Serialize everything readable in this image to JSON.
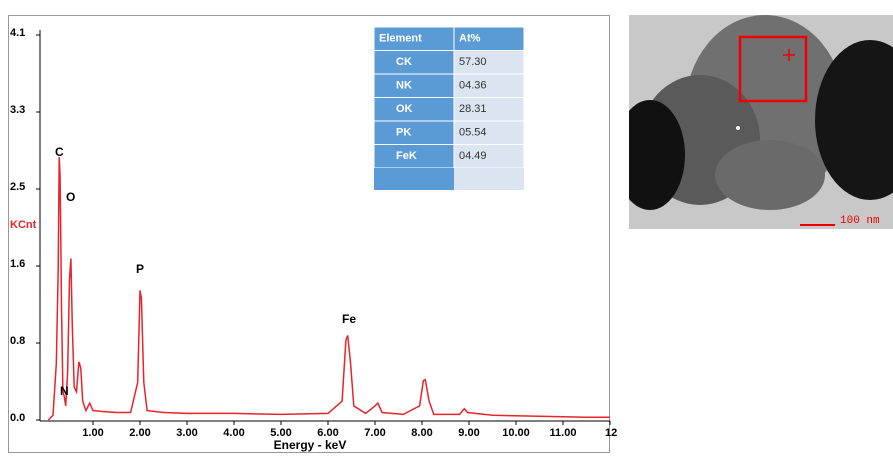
{
  "chart_data": {
    "type": "line",
    "x_label": "Energy - keV",
    "y_label": "KCnt",
    "x": [
      0.05,
      0.15,
      0.22,
      0.26,
      0.28,
      0.3,
      0.33,
      0.36,
      0.39,
      0.42,
      0.46,
      0.5,
      0.53,
      0.56,
      0.6,
      0.65,
      0.7,
      0.74,
      0.78,
      0.85,
      0.93,
      1.0,
      1.2,
      1.5,
      1.8,
      1.95,
      2.0,
      2.03,
      2.08,
      2.15,
      2.5,
      3.0,
      4.0,
      5.0,
      6.0,
      6.3,
      6.38,
      6.42,
      6.48,
      6.55,
      6.8,
      7.0,
      7.06,
      7.15,
      7.6,
      7.95,
      8.03,
      8.07,
      8.15,
      8.25,
      8.8,
      8.9,
      8.97,
      9.5,
      10.5,
      11.5,
      12.0
    ],
    "values": [
      0,
      0.05,
      0.6,
      1.6,
      2.8,
      2.6,
      1.2,
      0.3,
      0.25,
      0.15,
      0.5,
      1.5,
      1.72,
      1.0,
      0.35,
      0.3,
      0.62,
      0.55,
      0.2,
      0.1,
      0.18,
      0.1,
      0.09,
      0.08,
      0.08,
      0.4,
      1.38,
      1.3,
      0.4,
      0.1,
      0.08,
      0.07,
      0.07,
      0.06,
      0.07,
      0.2,
      0.85,
      0.9,
      0.6,
      0.15,
      0.07,
      0.15,
      0.18,
      0.08,
      0.06,
      0.15,
      0.42,
      0.43,
      0.2,
      0.06,
      0.06,
      0.12,
      0.08,
      0.05,
      0.04,
      0.03,
      0.03
    ],
    "color": "#e8232a",
    "xlim": [
      0,
      12
    ],
    "ylim": [
      0,
      4.1
    ],
    "xticks": [
      {
        "value": 1,
        "label": "1.00"
      },
      {
        "value": 2,
        "label": "2.00"
      },
      {
        "value": 3,
        "label": "3.00"
      },
      {
        "value": 4,
        "label": "4.00"
      },
      {
        "value": 5,
        "label": "5.00"
      },
      {
        "value": 6,
        "label": "6.00"
      },
      {
        "value": 7,
        "label": "7.00"
      },
      {
        "value": 8,
        "label": "8.00"
      },
      {
        "value": 9,
        "label": "9.00"
      },
      {
        "value": 10,
        "label": "10.00"
      },
      {
        "value": 11,
        "label": "11.00"
      },
      12
    ],
    "yticks": [
      {
        "value": 0,
        "label": "0.0"
      },
      {
        "value": 0.82,
        "label": "0.8"
      },
      {
        "value": 1.64,
        "label": "1.6"
      },
      {
        "value": 2.46,
        "label": "2.5"
      },
      {
        "value": 3.28,
        "label": "3.3"
      },
      4.1
    ],
    "annotations": [
      "C",
      "N",
      "O",
      "P",
      "Fe"
    ],
    "table": {
      "header": [
        "Element",
        "At%"
      ],
      "rows": [
        [
          "CK",
          "57.30"
        ],
        [
          "NK",
          "04.36"
        ],
        [
          "OK",
          "28.31"
        ],
        [
          "PK",
          "05.54"
        ],
        [
          "FeK",
          "04.49"
        ]
      ]
    }
  },
  "image": {
    "scale_label": "100 nm"
  }
}
